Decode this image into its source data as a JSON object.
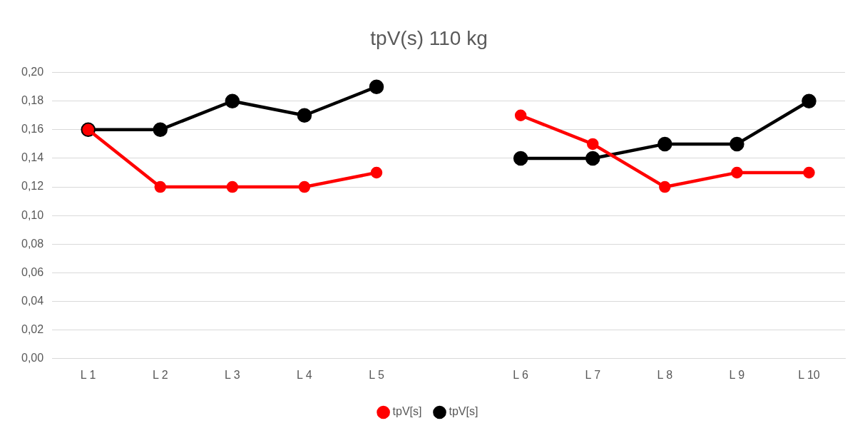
{
  "chart_data": {
    "type": "line",
    "title": "tpV(s) 110 kg",
    "categories": [
      "L 1",
      "L 2",
      "L 3",
      "L 4",
      "L 5",
      null,
      "L 6",
      "L 7",
      "L 8",
      "L 9",
      "L 10"
    ],
    "series": [
      {
        "name": "tpV[s]",
        "color": "#000000",
        "values": [
          0.16,
          0.16,
          0.18,
          0.17,
          0.19,
          null,
          0.14,
          0.14,
          0.15,
          0.15,
          0.18
        ]
      },
      {
        "name": "tpV[s]",
        "color": "#ff0000",
        "values": [
          0.16,
          0.12,
          0.12,
          0.12,
          0.13,
          null,
          0.17,
          0.15,
          0.12,
          0.13,
          0.13
        ]
      }
    ],
    "ylim": [
      0,
      0.2
    ],
    "yticks": [
      {
        "value": 0,
        "label": "0,00"
      },
      {
        "value": 0.02,
        "label": "0,02"
      },
      {
        "value": 0.04,
        "label": "0,04"
      },
      {
        "value": 0.06,
        "label": "0,06"
      },
      {
        "value": 0.08,
        "label": "0,08"
      },
      {
        "value": 0.1,
        "label": "0,10"
      },
      {
        "value": 0.12,
        "label": "0,12"
      },
      {
        "value": 0.14,
        "label": "0,14"
      },
      {
        "value": 0.16,
        "label": "0,16"
      },
      {
        "value": 0.18,
        "label": "0,18"
      },
      {
        "value": 0.2,
        "label": "0,20"
      }
    ],
    "grid": "y",
    "legend": "bottom",
    "marker": "circle",
    "line_style": "solid"
  }
}
